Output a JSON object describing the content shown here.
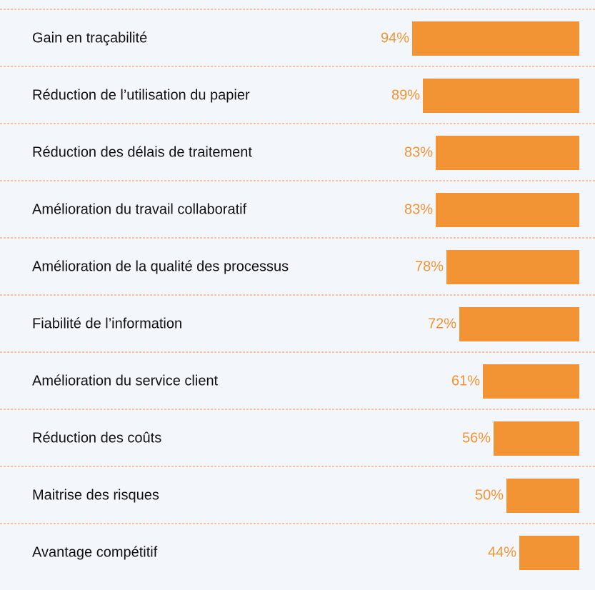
{
  "chart_data": {
    "type": "bar",
    "orientation": "horizontal",
    "categories": [
      "Gain en traçabilité",
      "Réduction de l’utilisation du papier",
      "Réduction des délais de traitement",
      "Amélioration du travail collaboratif",
      "Amélioration de la qualité des processus",
      "Fiabilité de l’information",
      "Amélioration du service client",
      "Réduction des coûts",
      "Maitrise des risques",
      "Avantage compétitif"
    ],
    "values": [
      94,
      89,
      83,
      83,
      78,
      72,
      61,
      56,
      50,
      44
    ],
    "value_labels": [
      "94%",
      "89%",
      "83%",
      "83%",
      "78%",
      "72%",
      "61%",
      "56%",
      "50%",
      "44%"
    ],
    "color": "#f39434",
    "xlim": [
      16,
      95
    ]
  }
}
